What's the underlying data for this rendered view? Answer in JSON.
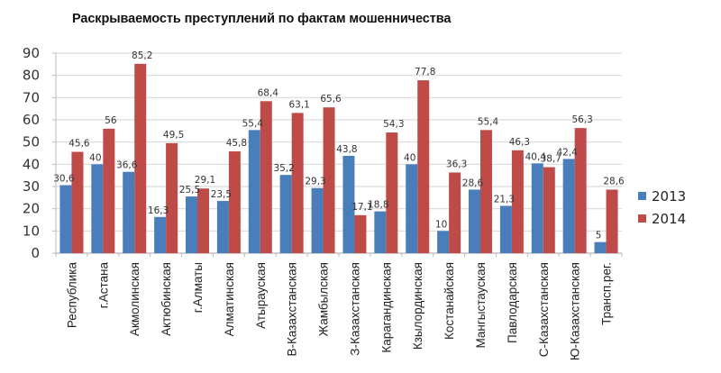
{
  "chart_data": {
    "type": "bar",
    "title": "Раскрываемость преступлений по фактам мошенничества",
    "xlabel": "",
    "ylabel": "",
    "ylim": [
      0,
      90
    ],
    "yticks": [
      0,
      10,
      20,
      30,
      40,
      50,
      60,
      70,
      80,
      90
    ],
    "grid": true,
    "legend_position": "right",
    "categories": [
      "Республика",
      "г.Астана",
      "Акмолинская",
      "Актюбинская",
      "г.Алматы",
      "Алматинская",
      "Атырауская",
      "В-Казахстанская",
      "Жамбылская",
      "З-Казахстанская",
      "Карагандинская",
      "Кзылординская",
      "Костанайская",
      "Мангыстауская",
      "Павлодарская",
      "С-Казахстанская",
      "Ю-Казахстанская",
      "Трансп.рег."
    ],
    "series": [
      {
        "name": "2013",
        "color": "#4a7ebb",
        "values": [
          30.6,
          40,
          36.6,
          16.3,
          25.5,
          23.5,
          55.4,
          35.2,
          29.3,
          43.8,
          18.8,
          40,
          10,
          28.6,
          21.3,
          40.4,
          42.4,
          5
        ]
      },
      {
        "name": "2014",
        "color": "#be4b48",
        "values": [
          45.6,
          56,
          85.2,
          49.5,
          29.1,
          45.8,
          68.4,
          63.1,
          65.6,
          17.1,
          54.3,
          77.8,
          36.3,
          55.4,
          46.3,
          38.7,
          56.3,
          28.6
        ]
      }
    ],
    "data_labels": {
      "2013": [
        "30,6",
        "40",
        "36,6",
        "16,3",
        "25,5",
        "23,5",
        "55,4",
        "35,2",
        "29,3",
        "43,8",
        "18,8",
        "40",
        "10",
        "28,6",
        "21,3",
        "40,4",
        "42,4",
        "5"
      ],
      "2014": [
        "45,6",
        "56",
        "85,2",
        "49,5",
        "29,1",
        "45,8",
        "68,4",
        "63,1",
        "65,6",
        "17,1",
        "54,3",
        "77,8",
        "36,3",
        "55,4",
        "46,3",
        "38,7",
        "56,3",
        "28,6"
      ]
    }
  },
  "legend": [
    {
      "label": "2013",
      "color": "#4a7ebb"
    },
    {
      "label": "2014",
      "color": "#be4b48"
    }
  ]
}
